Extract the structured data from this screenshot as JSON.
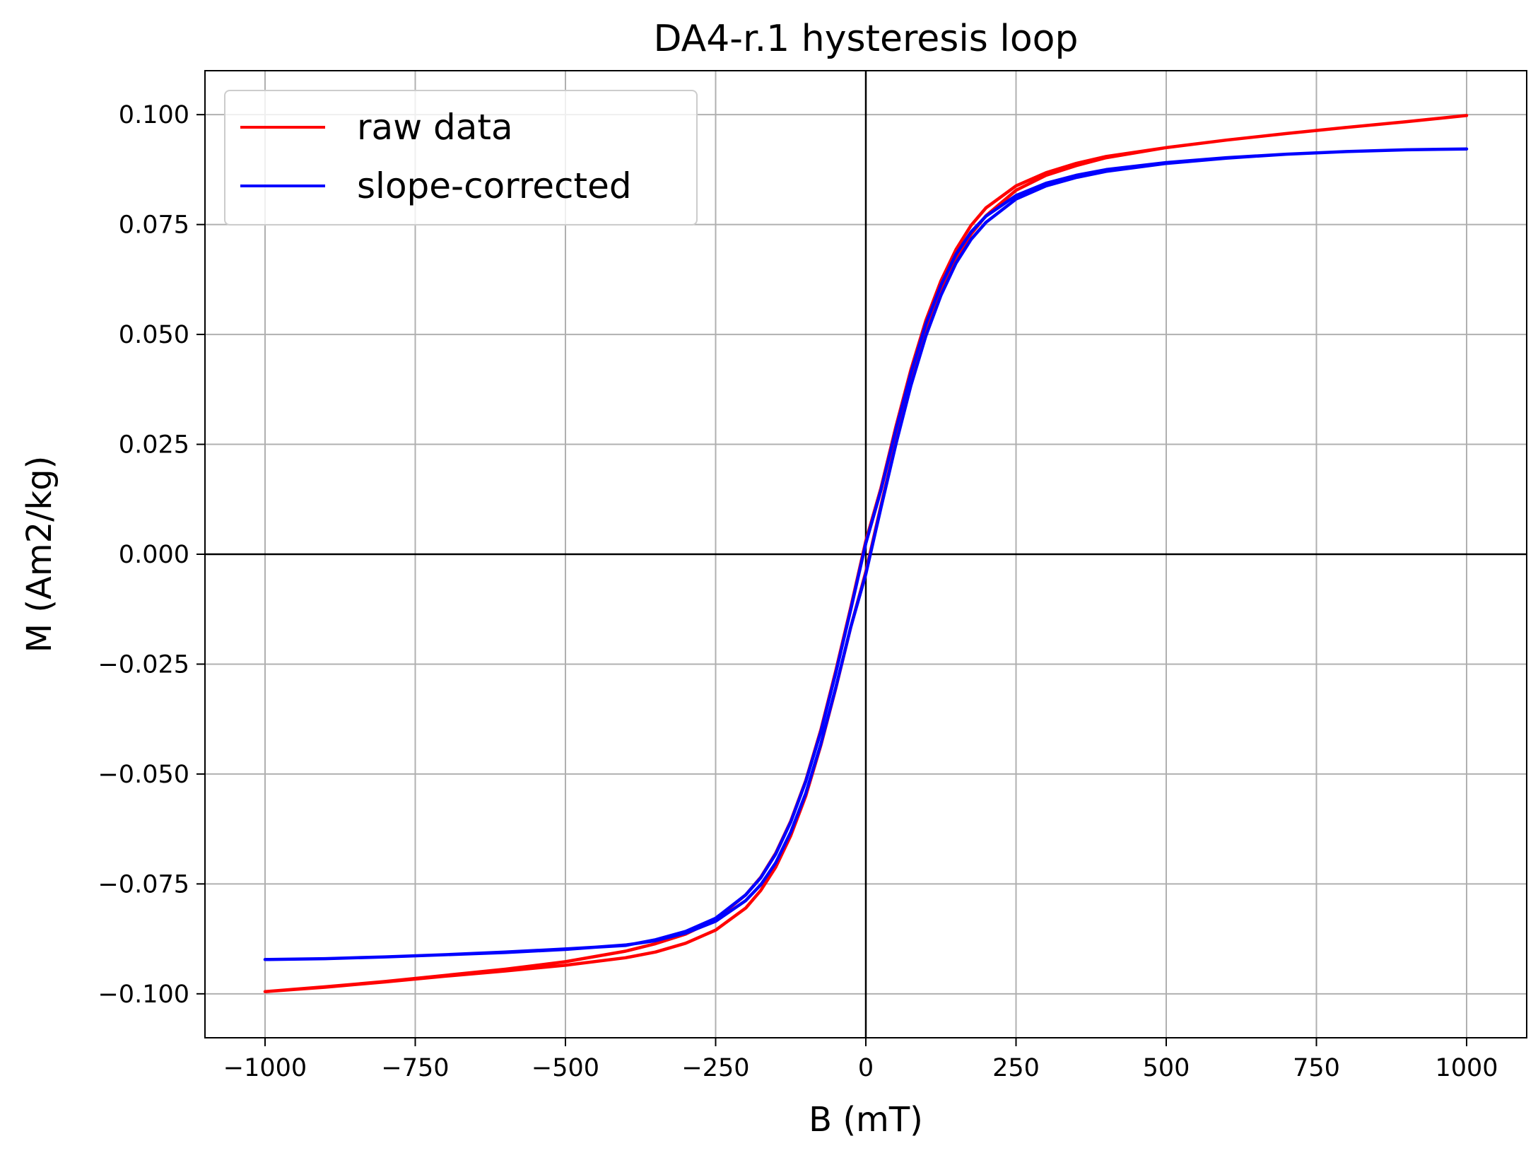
{
  "chart_data": {
    "type": "line",
    "title": "DA4-r.1 hysteresis loop",
    "xlabel": "B (mT)",
    "ylabel": "M (Am2/kg)",
    "xlim": [
      -1100,
      1100
    ],
    "ylim": [
      -0.11,
      0.11
    ],
    "x_ticks": [
      -1000,
      -750,
      -500,
      -250,
      0,
      250,
      500,
      750,
      1000
    ],
    "x_tick_labels": [
      "−1000",
      "−750",
      "−500",
      "−250",
      "0",
      "250",
      "500",
      "750",
      "1000"
    ],
    "y_ticks": [
      0.1,
      0.075,
      0.05,
      0.025,
      0.0,
      -0.025,
      -0.05,
      -0.075,
      -0.1
    ],
    "y_tick_labels": [
      "0.100",
      "0.075",
      "0.050",
      "0.025",
      "0.000",
      "−0.025",
      "−0.050",
      "−0.075",
      "−0.100"
    ],
    "grid": true,
    "zero_lines": true,
    "legend_position": "top-left",
    "series": [
      {
        "name": "raw data",
        "color": "#ff0000",
        "x": [
          -1000,
          -900,
          -800,
          -700,
          -600,
          -500,
          -400,
          -350,
          -300,
          -250,
          -200,
          -175,
          -150,
          -125,
          -100,
          -75,
          -50,
          -25,
          0,
          25,
          50,
          75,
          100,
          125,
          150,
          175,
          200,
          250,
          300,
          350,
          400,
          500,
          600,
          700,
          800,
          900,
          1000,
          1000,
          900,
          800,
          700,
          600,
          500,
          400,
          350,
          300,
          250,
          200,
          175,
          150,
          125,
          100,
          75,
          50,
          25,
          0,
          -25,
          -50,
          -75,
          -100,
          -125,
          -150,
          -175,
          -200,
          -250,
          -300,
          -350,
          -400,
          -500,
          -600,
          -700,
          -800,
          -900,
          -1000
        ],
        "y": [
          -0.0995,
          -0.0985,
          -0.0973,
          -0.096,
          -0.0948,
          -0.0935,
          -0.0918,
          -0.0905,
          -0.0885,
          -0.0855,
          -0.0805,
          -0.0765,
          -0.0712,
          -0.064,
          -0.055,
          -0.0435,
          -0.0305,
          -0.0165,
          -0.004,
          0.011,
          0.0255,
          0.039,
          0.0505,
          0.0598,
          0.0672,
          0.0728,
          0.077,
          0.0828,
          0.0862,
          0.0884,
          0.0902,
          0.0925,
          0.0942,
          0.0957,
          0.0971,
          0.0984,
          0.0998,
          0.0998,
          0.0984,
          0.0971,
          0.0957,
          0.0942,
          0.0925,
          0.0905,
          0.0889,
          0.0868,
          0.0838,
          0.0788,
          0.0748,
          0.0693,
          0.0622,
          0.0532,
          0.042,
          0.029,
          0.015,
          0.003,
          -0.012,
          -0.0265,
          -0.04,
          -0.0515,
          -0.0607,
          -0.068,
          -0.0735,
          -0.0775,
          -0.0831,
          -0.0864,
          -0.0886,
          -0.0903,
          -0.0927,
          -0.0944,
          -0.0958,
          -0.0972,
          -0.0984,
          -0.0995
        ]
      },
      {
        "name": "slope-corrected",
        "color": "#0000ff",
        "x": [
          -1000,
          -900,
          -800,
          -700,
          -600,
          -500,
          -400,
          -350,
          -300,
          -250,
          -200,
          -175,
          -150,
          -125,
          -100,
          -75,
          -50,
          -25,
          0,
          25,
          50,
          75,
          100,
          125,
          150,
          175,
          200,
          250,
          300,
          350,
          400,
          500,
          600,
          700,
          800,
          900,
          1000,
          1000,
          900,
          800,
          700,
          600,
          500,
          400,
          350,
          300,
          250,
          200,
          175,
          150,
          125,
          100,
          75,
          50,
          25,
          0,
          -25,
          -50,
          -75,
          -100,
          -125,
          -150,
          -175,
          -200,
          -250,
          -300,
          -350,
          -400,
          -500,
          -600,
          -700,
          -800,
          -900,
          -1000
        ],
        "y": [
          -0.0922,
          -0.092,
          -0.0916,
          -0.0911,
          -0.0906,
          -0.0899,
          -0.0889,
          -0.0879,
          -0.0862,
          -0.0835,
          -0.0788,
          -0.0752,
          -0.0702,
          -0.0632,
          -0.0544,
          -0.0432,
          -0.0303,
          -0.0165,
          -0.0045,
          0.0105,
          0.025,
          0.0384,
          0.0497,
          0.0589,
          0.0662,
          0.0716,
          0.0755,
          0.0808,
          0.0838,
          0.0857,
          0.0871,
          0.0889,
          0.0901,
          0.091,
          0.0916,
          0.092,
          0.0922,
          0.0922,
          0.092,
          0.0916,
          0.091,
          0.0902,
          0.0891,
          0.0875,
          0.0862,
          0.0844,
          0.0816,
          0.0769,
          0.0733,
          0.0682,
          0.0612,
          0.0524,
          0.0412,
          0.0283,
          0.0145,
          0.0025,
          -0.0125,
          -0.027,
          -0.0404,
          -0.0517,
          -0.0609,
          -0.0682,
          -0.0736,
          -0.0775,
          -0.0828,
          -0.0858,
          -0.0877,
          -0.089,
          -0.0898,
          -0.0905,
          -0.0911,
          -0.0916,
          -0.092,
          -0.0922
        ]
      }
    ]
  }
}
